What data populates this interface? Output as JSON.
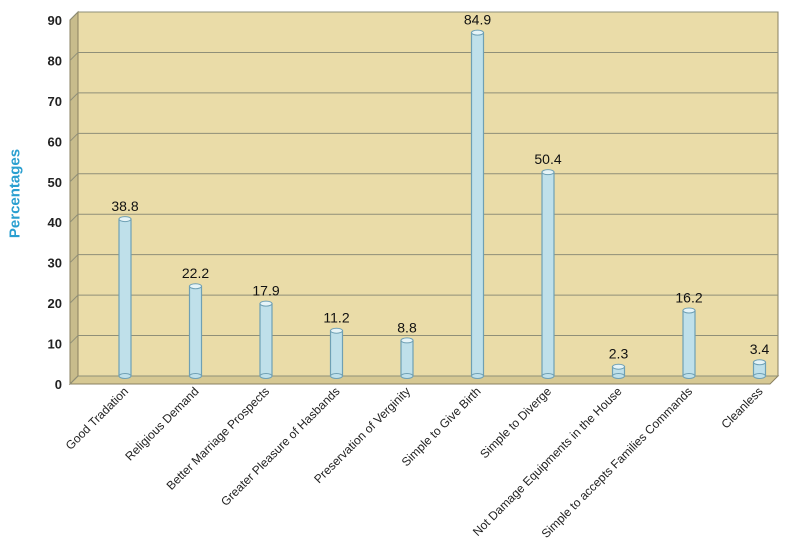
{
  "chart_data": {
    "type": "bar",
    "categories": [
      "Good Tradation",
      "Religious Demand",
      "Better Marriage Prospects",
      "Greater Pleasure of Hasbands",
      "Preservation of Verginity",
      "Simple to Give Birth",
      "Simple to Diverge",
      "Not Damage Equipments in the House",
      "Simple to accepts Families Commands",
      "Cleanless"
    ],
    "values": [
      38.8,
      22.2,
      17.9,
      11.2,
      8.8,
      84.9,
      50.4,
      2.3,
      16.2,
      3.4
    ],
    "value_labels": [
      "38.8",
      "22.2",
      "17.9",
      "11.2",
      "8.8",
      "84.9",
      "50.4",
      "2.3",
      "16.2",
      "3.4"
    ],
    "ylabel": "Percentages",
    "xlabel": "",
    "ylim": [
      0,
      90
    ],
    "yticks": [
      0,
      10,
      20,
      30,
      40,
      50,
      60,
      70,
      80,
      90
    ],
    "grid": true,
    "colors": {
      "bar": "#bfe0ea",
      "bar_edge": "#6fa0b4",
      "plot_bg": "#eadca8",
      "grid": "#8f8f78",
      "axis_label": "#2a9fd0"
    }
  }
}
